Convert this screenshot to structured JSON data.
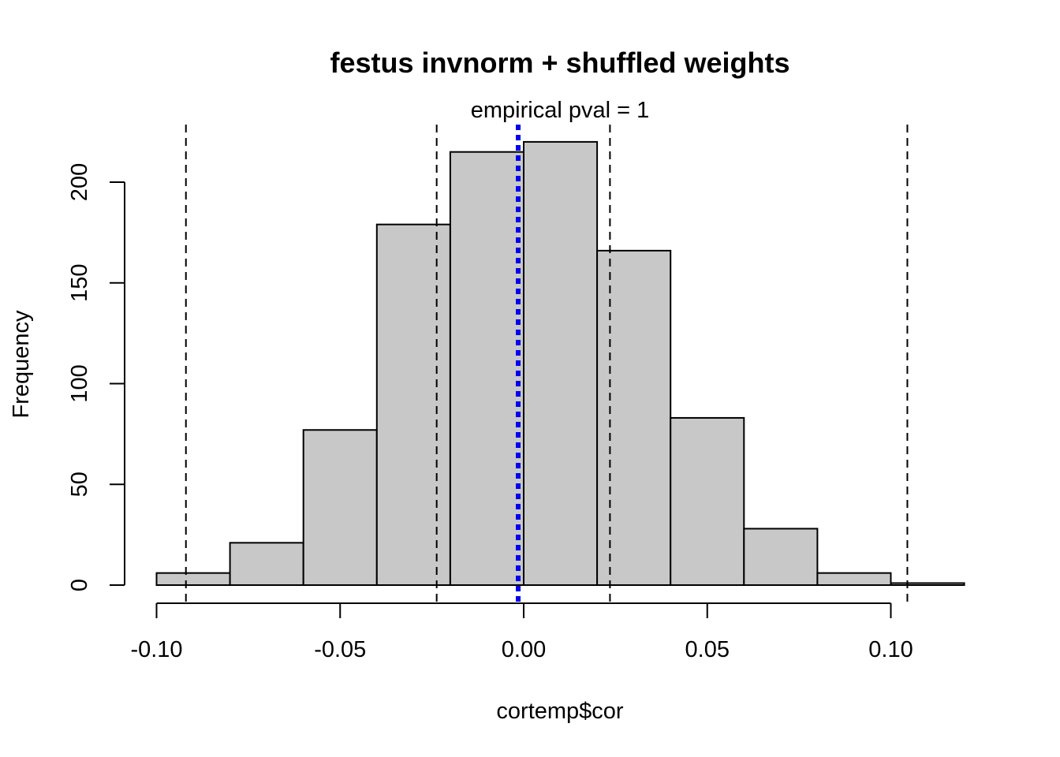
{
  "chart_data": {
    "type": "bar",
    "title": "festus invnorm + shuffled weights",
    "subtitle": "empirical pval = 1",
    "xlabel": "cortemp$cor",
    "ylabel": "Frequency",
    "xlim": [
      -0.1,
      0.12
    ],
    "ylim": [
      0,
      220
    ],
    "x_ticks": [
      "-0.10",
      "-0.05",
      "0.00",
      "0.05",
      "0.10"
    ],
    "y_ticks": [
      "0",
      "50",
      "100",
      "150",
      "200"
    ],
    "bins": [
      {
        "start": -0.1,
        "end": -0.08,
        "count": 6
      },
      {
        "start": -0.08,
        "end": -0.06,
        "count": 21
      },
      {
        "start": -0.06,
        "end": -0.04,
        "count": 77
      },
      {
        "start": -0.04,
        "end": -0.02,
        "count": 179
      },
      {
        "start": -0.02,
        "end": 0.0,
        "count": 215
      },
      {
        "start": 0.0,
        "end": 0.02,
        "count": 220
      },
      {
        "start": 0.02,
        "end": 0.04,
        "count": 166
      },
      {
        "start": 0.04,
        "end": 0.06,
        "count": 83
      },
      {
        "start": 0.06,
        "end": 0.08,
        "count": 28
      },
      {
        "start": 0.08,
        "end": 0.1,
        "count": 6
      },
      {
        "start": 0.1,
        "end": 0.12,
        "count": 1
      }
    ],
    "reference_lines": [
      {
        "x": -0.092,
        "style": "dashed",
        "color": "#000000"
      },
      {
        "x": -0.0237,
        "style": "dashed",
        "color": "#000000"
      },
      {
        "x": 0.0235,
        "style": "dashed",
        "color": "#000000"
      },
      {
        "x": 0.1045,
        "style": "dashed",
        "color": "#000000"
      },
      {
        "x": -0.0015,
        "style": "dotted",
        "color": "#0000ee"
      }
    ],
    "bar_fill": "#c8c8c8",
    "bar_stroke": "#000000",
    "grid": false,
    "legend": "none"
  }
}
